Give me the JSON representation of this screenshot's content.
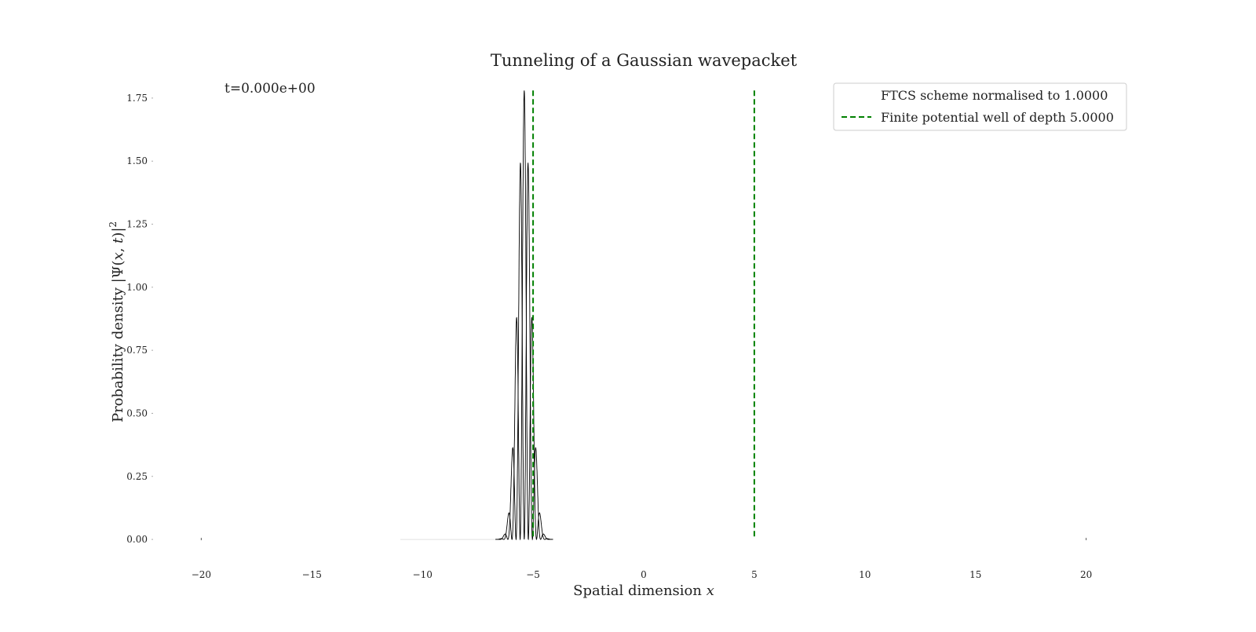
{
  "chart_data": {
    "type": "line",
    "title": "Tunneling of a Gaussian wavepacket",
    "xlabel": "Spatial dimension x",
    "ylabel": "Probability density |Ψ(x, t)|²",
    "annotation": "t=0.000e+00",
    "xlim": [
      -22,
      22
    ],
    "ylim": [
      -0.09,
      1.84
    ],
    "xticks": [
      -20,
      -15,
      -10,
      -5,
      0,
      5,
      10,
      15,
      20
    ],
    "xtick_labels": [
      "−20",
      "−15",
      "−10",
      "−5",
      "0",
      "5",
      "10",
      "15",
      "20"
    ],
    "yticks": [
      0.0,
      0.25,
      0.5,
      0.75,
      1.0,
      1.25,
      1.5,
      1.75
    ],
    "ytick_labels": [
      "0.00",
      "0.25",
      "0.50",
      "0.75",
      "1.00",
      "1.25",
      "1.50",
      "1.75"
    ],
    "grid": false,
    "legend_position": "top-right",
    "series": [
      {
        "name": "FTCS scheme normalised to 1.0000",
        "style": "solid",
        "color": "#000000",
        "x_range": [
          -11,
          20
        ],
        "envelope_center": -5.4,
        "envelope_peak": 1.78,
        "envelope_width": 0.3
      },
      {
        "name": "Finite potential well of depth 5.0000",
        "style": "dashed",
        "color": "#008000",
        "x": [
          -5,
          5
        ],
        "y_range": [
          0,
          1.78
        ]
      }
    ]
  }
}
